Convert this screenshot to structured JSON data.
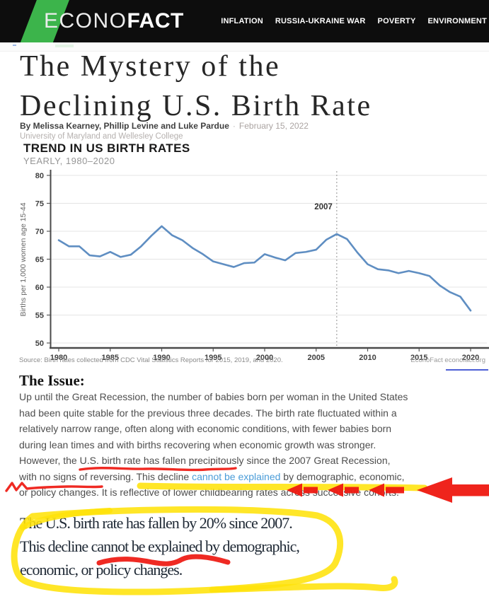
{
  "colors": {
    "header_bg": "#0d0d0d",
    "brand_green": "#3cb44b",
    "chart_line": "#5f8ec2",
    "link_blue": "#4a9cd8",
    "annotation_red": "#ee1810",
    "annotation_yellow": "#ffe20a",
    "econofact_underline_blue": "#4c5fd5"
  },
  "header": {
    "logo_econo": "ECONO",
    "logo_fact": "FACT",
    "nav": [
      {
        "label": "INFLATION"
      },
      {
        "label": "RUSSIA-UKRAINE WAR"
      },
      {
        "label": "POVERTY"
      },
      {
        "label": "ENVIRONMENT"
      }
    ]
  },
  "article": {
    "title_line1": "The Mystery of the",
    "title_line2": "Declining U.S. Birth Rate",
    "byline_authors": "By Melissa Kearney, Phillip Levine and Luke Pardue",
    "byline_separator": "·",
    "byline_date": "February 15, 2022",
    "byline_affiliation": "University of Maryland and Wellesley College"
  },
  "chart": {
    "title": "TREND IN US BIRTH RATES",
    "subtitle": "YEARLY, 1980–2020",
    "source_left": "Source: Birth rates collected from CDC Vital Statistics Reports for 2015, 2019, and 2020.",
    "source_right": "EconoFact  econofact.org"
  },
  "chart_data": {
    "type": "line",
    "title": "TREND IN US BIRTH RATES",
    "subtitle": "YEARLY, 1980–2020",
    "xlabel": "",
    "ylabel": "Births per 1,000 women age 15-44",
    "ylim": [
      50,
      80
    ],
    "yticks": [
      50,
      55,
      60,
      65,
      70,
      75,
      80
    ],
    "xticks": [
      1980,
      1985,
      1990,
      1995,
      2000,
      2005,
      2010,
      2015,
      2020
    ],
    "grid": true,
    "line_color": "#5f8ec2",
    "vline": {
      "x": 2007,
      "label": "2007",
      "style": "dashed"
    },
    "x": [
      1980,
      1981,
      1982,
      1983,
      1984,
      1985,
      1986,
      1987,
      1988,
      1989,
      1990,
      1991,
      1992,
      1993,
      1994,
      1995,
      1996,
      1997,
      1998,
      1999,
      2000,
      2001,
      2002,
      2003,
      2004,
      2005,
      2006,
      2007,
      2008,
      2009,
      2010,
      2011,
      2012,
      2013,
      2014,
      2015,
      2016,
      2017,
      2018,
      2019,
      2020
    ],
    "values": [
      68.4,
      67.3,
      67.3,
      65.7,
      65.5,
      66.3,
      65.4,
      65.8,
      67.3,
      69.2,
      70.9,
      69.3,
      68.4,
      67.0,
      65.9,
      64.6,
      64.1,
      63.6,
      64.3,
      64.4,
      65.9,
      65.3,
      64.8,
      66.1,
      66.3,
      66.7,
      68.5,
      69.5,
      68.6,
      66.2,
      64.1,
      63.2,
      63.0,
      62.5,
      62.9,
      62.5,
      62.0,
      60.3,
      59.1,
      58.3,
      55.8
    ]
  },
  "issue": {
    "heading": "The Issue:",
    "lines": [
      "Up until the Great Recession, the number of babies born per woman in the United States",
      "had been quite stable for the previous three decades. The birth rate fluctuated within a",
      "relatively narrow range, often along with economic conditions, with fewer babies born",
      "during lean times and with births recovering when economic growth was stronger.",
      "However, the U.S. birth rate has fallen precipitously since the 2007 Great Recession,"
    ],
    "line6_before": "with no signs of reversing. This decline ",
    "line6_link": "cannot be explained",
    "line6_after": " by demographic, economic,",
    "line7": "or policy changes. It is reflective of lower childbearing rates across successive cohorts."
  },
  "callout": {
    "line1": "The U.S. birth rate has fallen by 20% since 2007.",
    "line2": "This decline cannot be explained by demographic,",
    "line3": "economic, or policy changes."
  }
}
